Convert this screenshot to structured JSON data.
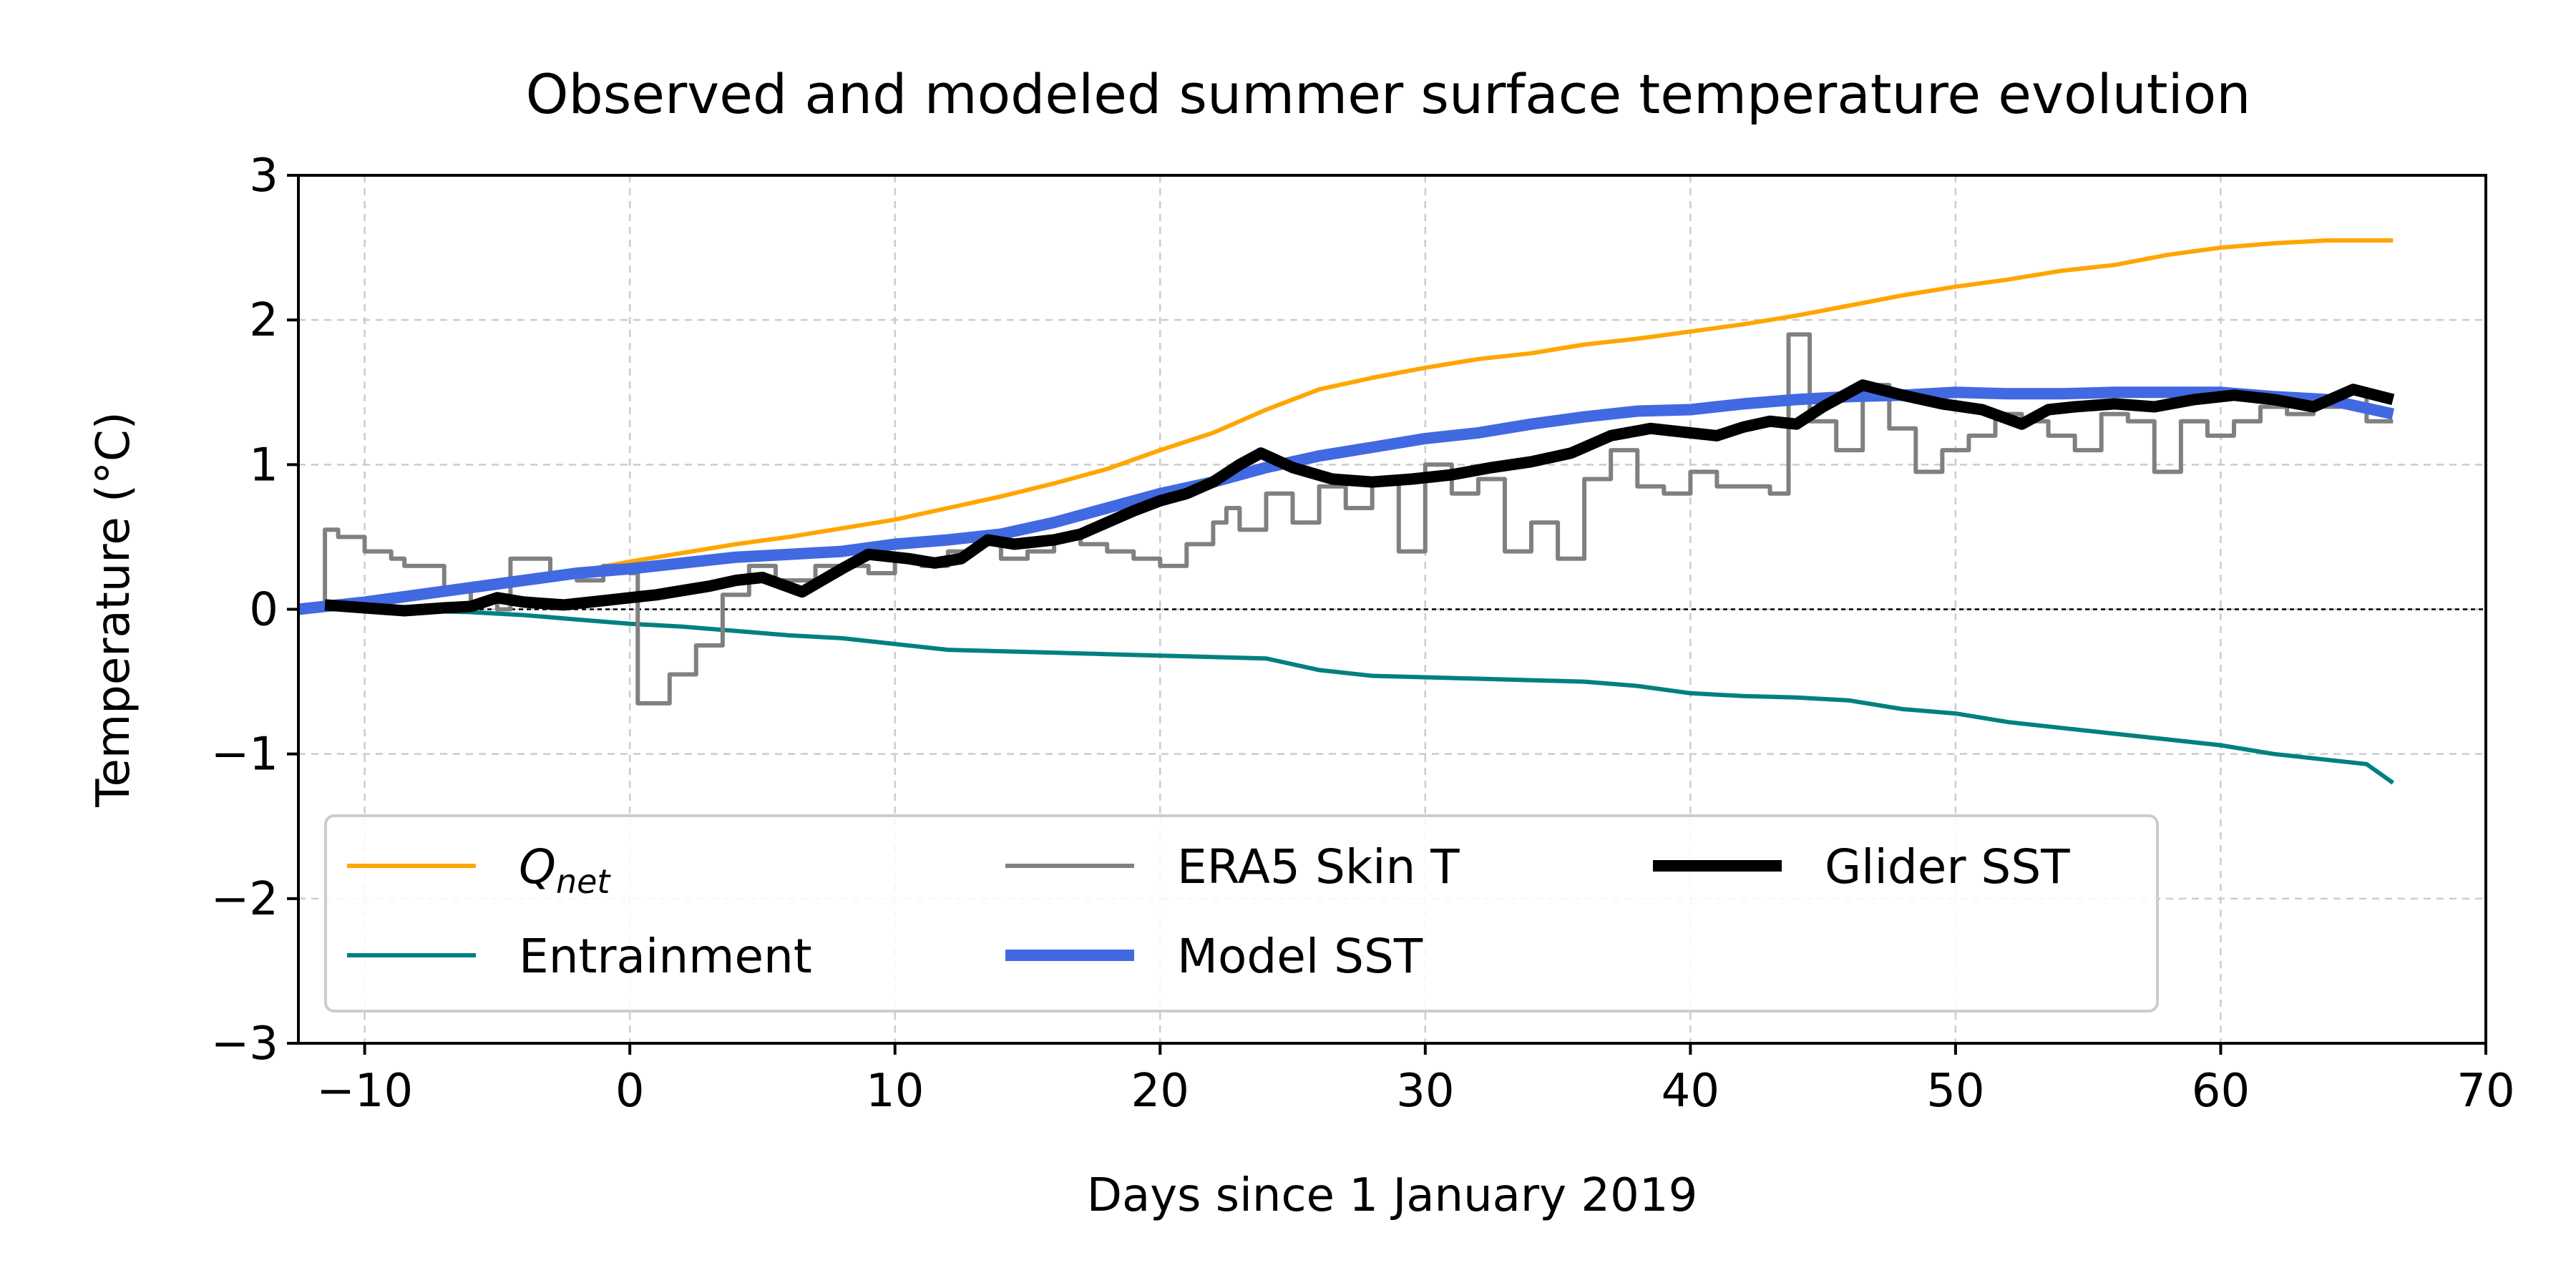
{
  "chart_data": {
    "type": "line",
    "title": "Observed and modeled summer surface temperature evolution",
    "xlabel": "Days since 1 January 2019",
    "ylabel": "Temperature (°C)",
    "xlim": [
      -12.5,
      70
    ],
    "ylim": [
      -3,
      3
    ],
    "xticks": [
      -10,
      0,
      10,
      20,
      30,
      40,
      50,
      60,
      70
    ],
    "xtick_labels": [
      "−10",
      "0",
      "10",
      "20",
      "30",
      "40",
      "50",
      "60",
      "70"
    ],
    "yticks": [
      -3,
      -2,
      -1,
      0,
      1,
      2,
      3
    ],
    "ytick_labels": [
      "−3",
      "−2",
      "−1",
      "0",
      "1",
      "2",
      "3"
    ],
    "grid": true,
    "zero_line": true,
    "legend_position": "lower-left",
    "legend_columns": 3,
    "series": [
      {
        "key": "qnet",
        "name": "Q",
        "name_sub": "net",
        "color": "#ffa500",
        "width": "thin",
        "x": [
          -12,
          -10,
          -8,
          -6,
          -4,
          -2,
          0,
          2,
          4,
          6,
          8,
          10,
          12,
          14,
          16,
          18,
          20,
          22,
          24,
          26,
          28,
          30,
          32,
          34,
          36,
          38,
          40,
          42,
          44,
          46,
          48,
          50,
          52,
          54,
          56,
          58,
          60,
          62,
          64,
          66.5
        ],
        "y": [
          0.0,
          0.05,
          0.08,
          0.14,
          0.2,
          0.26,
          0.33,
          0.39,
          0.45,
          0.5,
          0.56,
          0.62,
          0.7,
          0.78,
          0.87,
          0.97,
          1.1,
          1.22,
          1.38,
          1.52,
          1.6,
          1.67,
          1.73,
          1.77,
          1.83,
          1.87,
          1.92,
          1.97,
          2.03,
          2.1,
          2.17,
          2.23,
          2.28,
          2.34,
          2.38,
          2.45,
          2.5,
          2.53,
          2.55,
          2.55
        ]
      },
      {
        "key": "entrainment",
        "name": "Entrainment",
        "color": "#008080",
        "width": "thin",
        "x": [
          -12,
          -10,
          -8,
          -6,
          -4,
          -2,
          0,
          2,
          4,
          6,
          8,
          10,
          12,
          14,
          16,
          18,
          20,
          22,
          24,
          26,
          28,
          30,
          32,
          34,
          36,
          38,
          40,
          42,
          44,
          46,
          48,
          50,
          52,
          54,
          56,
          58,
          60,
          62,
          64,
          65.5,
          66.5
        ],
        "y": [
          0.0,
          0.0,
          -0.01,
          -0.02,
          -0.04,
          -0.07,
          -0.1,
          -0.12,
          -0.15,
          -0.18,
          -0.2,
          -0.24,
          -0.28,
          -0.29,
          -0.3,
          -0.31,
          -0.32,
          -0.33,
          -0.34,
          -0.42,
          -0.46,
          -0.47,
          -0.48,
          -0.49,
          -0.5,
          -0.53,
          -0.58,
          -0.6,
          -0.61,
          -0.63,
          -0.69,
          -0.72,
          -0.78,
          -0.82,
          -0.86,
          -0.9,
          -0.94,
          -1.0,
          -1.04,
          -1.07,
          -1.2
        ]
      },
      {
        "key": "era5",
        "name": "ERA5 Skin T",
        "color": "#808080",
        "width": "medium",
        "step": true,
        "x": [
          -12,
          -11.5,
          -11,
          -10,
          -9,
          -8.5,
          -7,
          -6,
          -5,
          -4.5,
          -3,
          -2,
          -1,
          0,
          0.3,
          1.5,
          2.5,
          3.5,
          4.5,
          5.5,
          7,
          9,
          10,
          11,
          12,
          13,
          14,
          15,
          16,
          17,
          18,
          19,
          20,
          21,
          22,
          22.5,
          23,
          24,
          25,
          26,
          27,
          28,
          29,
          30,
          31,
          32,
          33,
          34,
          35,
          36,
          37,
          38,
          39,
          40,
          41,
          42,
          43,
          43.7,
          44.5,
          45.5,
          46.5,
          47.5,
          48.5,
          49.5,
          50.5,
          51.5,
          52.5,
          53.5,
          54.5,
          55.5,
          56.5,
          57.5,
          58.5,
          59.5,
          60.5,
          61.5,
          62.5,
          63.5,
          64.5,
          65.5,
          66.5
        ],
        "y": [
          0.0,
          0.55,
          0.5,
          0.4,
          0.35,
          0.3,
          0.15,
          0.05,
          0.0,
          0.35,
          0.25,
          0.2,
          0.3,
          0.25,
          -0.65,
          -0.45,
          -0.25,
          0.1,
          0.3,
          0.2,
          0.3,
          0.25,
          0.35,
          0.3,
          0.4,
          0.45,
          0.35,
          0.4,
          0.5,
          0.45,
          0.4,
          0.35,
          0.3,
          0.45,
          0.6,
          0.7,
          0.55,
          0.8,
          0.6,
          0.85,
          0.7,
          0.9,
          0.4,
          1.0,
          0.8,
          0.9,
          0.4,
          0.6,
          0.35,
          0.9,
          1.1,
          0.85,
          0.8,
          0.95,
          0.85,
          0.85,
          0.8,
          1.9,
          1.3,
          1.1,
          1.55,
          1.25,
          0.95,
          1.1,
          1.2,
          1.35,
          1.3,
          1.2,
          1.1,
          1.35,
          1.3,
          0.95,
          1.3,
          1.2,
          1.3,
          1.4,
          1.35,
          1.4,
          1.5,
          1.3,
          1.3
        ]
      },
      {
        "key": "model",
        "name": "Model SST",
        "color": "#4169e1",
        "width": "thick",
        "x": [
          -12.5,
          -10,
          -8,
          -6,
          -4,
          -2,
          0,
          2,
          4,
          6,
          8,
          10,
          12,
          14,
          16,
          18,
          20,
          22,
          24,
          26,
          28,
          30,
          32,
          34,
          36,
          38,
          40,
          42,
          44,
          46,
          48,
          50,
          52,
          54,
          56,
          58,
          60,
          62,
          64,
          66.5
        ],
        "y": [
          0.0,
          0.05,
          0.1,
          0.15,
          0.2,
          0.25,
          0.28,
          0.32,
          0.36,
          0.38,
          0.4,
          0.45,
          0.48,
          0.52,
          0.6,
          0.7,
          0.8,
          0.88,
          0.98,
          1.06,
          1.12,
          1.18,
          1.22,
          1.28,
          1.33,
          1.37,
          1.38,
          1.42,
          1.45,
          1.47,
          1.48,
          1.5,
          1.49,
          1.49,
          1.5,
          1.5,
          1.5,
          1.47,
          1.45,
          1.35
        ]
      },
      {
        "key": "glider",
        "name": "Glider SST",
        "color": "#000000",
        "width": "thick",
        "x": [
          -11.5,
          -10,
          -8.5,
          -7,
          -6,
          -5,
          -4,
          -2.5,
          -1,
          0,
          1,
          2,
          3,
          4,
          5,
          6.5,
          8,
          9,
          10.5,
          11.5,
          12.5,
          13.5,
          14.5,
          16,
          17,
          18,
          19,
          20,
          21,
          22,
          23,
          23.8,
          25,
          26.5,
          28,
          29.5,
          31,
          32.5,
          34,
          35.5,
          37,
          38.5,
          40,
          41,
          42,
          43,
          44,
          45,
          46.5,
          48,
          49.5,
          51,
          52.5,
          53.5,
          54.5,
          56,
          57.5,
          59,
          60.5,
          62,
          63.5,
          65,
          66.5
        ],
        "y": [
          0.03,
          0.01,
          -0.01,
          0.01,
          0.02,
          0.08,
          0.05,
          0.03,
          0.06,
          0.08,
          0.1,
          0.13,
          0.16,
          0.2,
          0.22,
          0.12,
          0.28,
          0.38,
          0.35,
          0.32,
          0.35,
          0.48,
          0.45,
          0.48,
          0.52,
          0.6,
          0.68,
          0.75,
          0.8,
          0.88,
          1.0,
          1.08,
          0.98,
          0.9,
          0.88,
          0.9,
          0.93,
          0.98,
          1.02,
          1.08,
          1.2,
          1.25,
          1.22,
          1.2,
          1.26,
          1.3,
          1.28,
          1.4,
          1.55,
          1.48,
          1.42,
          1.38,
          1.28,
          1.38,
          1.4,
          1.42,
          1.4,
          1.45,
          1.48,
          1.45,
          1.4,
          1.52,
          1.45
        ]
      }
    ]
  }
}
